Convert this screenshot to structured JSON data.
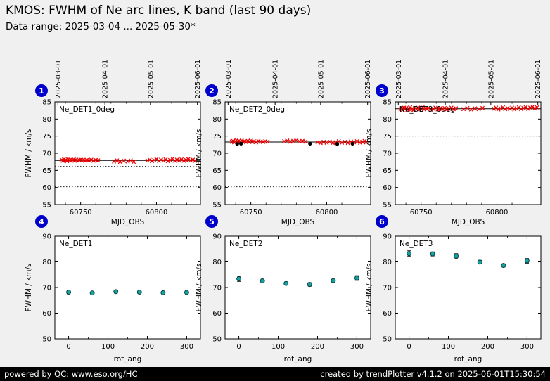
{
  "header": {
    "title": "KMOS: FWHM of Ne arc lines, K band (last 90 days)",
    "subtitle": "Data range: 2025-03-04 ... 2025-05-30*"
  },
  "footer": {
    "left": "powered by QC: www.eso.org/HC",
    "right": "created by trendPlotter v4.1.2 on 2025-06-01T15:30:54"
  },
  "colors": {
    "background": "#f0f0f0",
    "badge_blue": "#0000cc",
    "marker_red": "#ee0000",
    "marker_teal": "#17a2a2",
    "footer_bg": "#000000"
  },
  "chart_data": [
    {
      "type": "scatter",
      "badge": "1",
      "label": "Ne_DET1_0deg",
      "xlabel": "MJD_OBS",
      "ylabel": "FWHM / km/s",
      "xlim": [
        60733,
        60829
      ],
      "ylim": [
        55,
        85
      ],
      "yticks": [
        55,
        60,
        65,
        70,
        75,
        80,
        85
      ],
      "xticks": [
        60750,
        60800
      ],
      "minor_xticks": [
        60740,
        60760,
        60770,
        60780,
        60790,
        60810,
        60820
      ],
      "top_ticks": {
        "values": [
          60735,
          60766,
          60796,
          60827
        ],
        "labels": [
          "2025-03-01",
          "2025-04-01",
          "2025-05-01",
          "2025-06-01"
        ]
      },
      "solid_line": 67.9,
      "dotted_lines": [
        66.2,
        60.2
      ],
      "series": [
        {
          "name": "fwhm-red-x",
          "marker": "x",
          "color": "#ee0000",
          "points": [
            [
              60737.5,
              68.1
            ],
            [
              60738.2,
              67.8
            ],
            [
              60739,
              68.3
            ],
            [
              60739.6,
              67.9
            ],
            [
              60740.3,
              68.0
            ],
            [
              60741,
              67.7
            ],
            [
              60741.8,
              68.2
            ],
            [
              60742.5,
              67.9
            ],
            [
              60743.2,
              68.1
            ],
            [
              60744,
              67.8
            ],
            [
              60744.8,
              68.0
            ],
            [
              60745.5,
              68.2
            ],
            [
              60746.3,
              67.9
            ],
            [
              60747,
              68.1
            ],
            [
              60748,
              67.8
            ],
            [
              60749,
              68.0
            ],
            [
              60750,
              68.2
            ],
            [
              60751,
              67.9
            ],
            [
              60752,
              68.1
            ],
            [
              60753,
              67.8
            ],
            [
              60754,
              68.0
            ],
            [
              60755.5,
              67.9
            ],
            [
              60757,
              68.1
            ],
            [
              60758.5,
              67.8
            ],
            [
              60760,
              68.0
            ],
            [
              60761.5,
              67.9
            ],
            [
              60772,
              67.6
            ],
            [
              60774,
              67.9
            ],
            [
              60776,
              67.5
            ],
            [
              60778.5,
              67.8
            ],
            [
              60781,
              67.6
            ],
            [
              60783,
              67.9
            ],
            [
              60785,
              67.5
            ],
            [
              60794,
              67.9
            ],
            [
              60795.5,
              68.1
            ],
            [
              60797,
              67.7
            ],
            [
              60798.5,
              68.0
            ],
            [
              60800,
              68.3
            ],
            [
              60801.5,
              67.8
            ],
            [
              60803,
              68.1
            ],
            [
              60804.5,
              67.9
            ],
            [
              60806,
              68.2
            ],
            [
              60807.5,
              67.7
            ],
            [
              60809,
              68.0
            ],
            [
              60810.5,
              68.4
            ],
            [
              60812,
              67.8
            ],
            [
              60813.5,
              68.1
            ],
            [
              60815,
              67.9
            ],
            [
              60816.5,
              68.2
            ],
            [
              60818,
              67.8
            ],
            [
              60819.5,
              68.0
            ],
            [
              60821,
              68.3
            ],
            [
              60822.5,
              67.9
            ],
            [
              60824,
              68.1
            ],
            [
              60825.5,
              67.8
            ]
          ]
        }
      ]
    },
    {
      "type": "scatter",
      "badge": "2",
      "label": "Ne_DET2_0deg",
      "xlabel": "MJD_OBS",
      "ylabel": "FWHM / km/s",
      "xlim": [
        60733,
        60829
      ],
      "ylim": [
        55,
        85
      ],
      "yticks": [
        55,
        60,
        65,
        70,
        75,
        80,
        85
      ],
      "xticks": [
        60750,
        60800
      ],
      "minor_xticks": [
        60740,
        60760,
        60770,
        60780,
        60790,
        60810,
        60820
      ],
      "top_ticks": {
        "values": [
          60735,
          60766,
          60796,
          60827
        ],
        "labels": [
          "2025-03-01",
          "2025-04-01",
          "2025-05-01",
          "2025-06-01"
        ]
      },
      "solid_line": 73.3,
      "dotted_lines": [
        70.9,
        60.2
      ],
      "series": [
        {
          "name": "fwhm-red-x",
          "marker": "x",
          "color": "#ee0000",
          "points": [
            [
              60737.5,
              73.4
            ],
            [
              60738.3,
              73.6
            ],
            [
              60739,
              73.2
            ],
            [
              60739.8,
              73.5
            ],
            [
              60740.5,
              73.8
            ],
            [
              60741.3,
              73.3
            ],
            [
              60742,
              73.6
            ],
            [
              60743,
              73.4
            ],
            [
              60744,
              73.7
            ],
            [
              60745,
              73.3
            ],
            [
              60746,
              73.5
            ],
            [
              60747,
              73.2
            ],
            [
              60748,
              73.6
            ],
            [
              60749,
              73.4
            ],
            [
              60750,
              73.7
            ],
            [
              60751,
              73.3
            ],
            [
              60752,
              73.5
            ],
            [
              60753.5,
              73.2
            ],
            [
              60755,
              73.6
            ],
            [
              60756.5,
              73.4
            ],
            [
              60758,
              73.3
            ],
            [
              60759.5,
              73.5
            ],
            [
              60761,
              73.4
            ],
            [
              60772,
              73.5
            ],
            [
              60774,
              73.7
            ],
            [
              60776,
              73.4
            ],
            [
              60778,
              73.6
            ],
            [
              60780,
              73.8
            ],
            [
              60782,
              73.5
            ],
            [
              60784,
              73.6
            ],
            [
              60786,
              73.4
            ],
            [
              60794,
              73.2
            ],
            [
              60796,
              73.0
            ],
            [
              60798,
              73.3
            ],
            [
              60800,
              73.1
            ],
            [
              60802,
              73.4
            ],
            [
              60804,
              73.0
            ],
            [
              60806,
              73.2
            ],
            [
              60808,
              73.5
            ],
            [
              60810,
              73.1
            ],
            [
              60812,
              73.3
            ],
            [
              60814,
              73.0
            ],
            [
              60816,
              73.4
            ],
            [
              60818,
              73.2
            ],
            [
              60820,
              73.5
            ],
            [
              60822,
              73.1
            ],
            [
              60823.5,
              73.3
            ],
            [
              60825,
              73.6
            ],
            [
              60826,
              73.2
            ]
          ]
        },
        {
          "name": "reference-black-dots",
          "marker": "dot",
          "color": "#000000",
          "points": [
            [
              60741,
              72.7
            ],
            [
              60743.5,
              72.8
            ],
            [
              60789,
              72.8
            ],
            [
              60807,
              72.7
            ],
            [
              60817,
              72.8
            ]
          ]
        }
      ]
    },
    {
      "type": "scatter",
      "badge": "3",
      "label": "Ne_DET3_0deg",
      "xlabel": "MJD_OBS",
      "ylabel": "FWHM / km/s",
      "xlim": [
        60733,
        60829
      ],
      "ylim": [
        55,
        85
      ],
      "yticks": [
        55,
        60,
        65,
        70,
        75,
        80,
        85
      ],
      "xticks": [
        60750,
        60800
      ],
      "minor_xticks": [
        60740,
        60760,
        60770,
        60780,
        60790,
        60810,
        60820
      ],
      "top_ticks": {
        "values": [
          60735,
          60766,
          60796,
          60827
        ],
        "labels": [
          "2025-03-01",
          "2025-04-01",
          "2025-05-01",
          "2025-06-01"
        ]
      },
      "solid_line": 83.0,
      "dotted_lines": [
        75.0
      ],
      "series": [
        {
          "name": "fwhm-red-x",
          "marker": "x",
          "color": "#ee0000",
          "points": [
            [
              60736.5,
              82.8
            ],
            [
              60737.3,
              83.1
            ],
            [
              60738,
              82.6
            ],
            [
              60738.8,
              83.3
            ],
            [
              60739.5,
              82.9
            ],
            [
              60740.3,
              83.2
            ],
            [
              60741,
              82.7
            ],
            [
              60742,
              83.0
            ],
            [
              60742.8,
              83.4
            ],
            [
              60743.5,
              82.8
            ],
            [
              60744.3,
              83.1
            ],
            [
              60745,
              82.6
            ],
            [
              60746,
              83.2
            ],
            [
              60747,
              82.9
            ],
            [
              60748,
              83.3
            ],
            [
              60749,
              82.7
            ],
            [
              60750,
              83.0
            ],
            [
              60751,
              83.4
            ],
            [
              60752,
              82.8
            ],
            [
              60753,
              83.1
            ],
            [
              60754,
              82.9
            ],
            [
              60755,
              83.2
            ],
            [
              60756.5,
              82.7
            ],
            [
              60758,
              83.0
            ],
            [
              60759.5,
              83.3
            ],
            [
              60761,
              82.8
            ],
            [
              60762.5,
              83.1
            ],
            [
              60764,
              82.9
            ],
            [
              60765.5,
              83.2
            ],
            [
              60767,
              82.8
            ],
            [
              60768.5,
              83.0
            ],
            [
              60770,
              83.3
            ],
            [
              60771.5,
              82.9
            ],
            [
              60773,
              83.1
            ],
            [
              60778,
              82.9
            ],
            [
              60780.5,
              83.2
            ],
            [
              60783,
              82.8
            ],
            [
              60785.5,
              83.1
            ],
            [
              60788,
              82.9
            ],
            [
              60790.5,
              83.2
            ],
            [
              60798,
              83.0
            ],
            [
              60799.5,
              83.3
            ],
            [
              60801,
              82.8
            ],
            [
              60802.5,
              83.1
            ],
            [
              60804,
              83.4
            ],
            [
              60805.5,
              82.9
            ],
            [
              60807,
              83.2
            ],
            [
              60808.5,
              83.0
            ],
            [
              60810,
              83.3
            ],
            [
              60811.5,
              82.8
            ],
            [
              60813,
              83.1
            ],
            [
              60814.5,
              83.4
            ],
            [
              60816,
              82.9
            ],
            [
              60817.5,
              83.2
            ],
            [
              60819,
              83.5
            ],
            [
              60820.5,
              83.0
            ],
            [
              60822,
              83.3
            ],
            [
              60823.5,
              83.6
            ],
            [
              60825,
              83.1
            ],
            [
              60826.5,
              83.4
            ]
          ]
        }
      ]
    },
    {
      "type": "scatter-errorbar",
      "badge": "4",
      "label": "Ne_DET1",
      "xlabel": "rot_ang",
      "ylabel": "FWHM / km/s",
      "xlim": [
        -35,
        335
      ],
      "ylim": [
        50,
        90
      ],
      "yticks": [
        50,
        60,
        70,
        80,
        90
      ],
      "xticks": [
        0,
        100,
        200,
        300
      ],
      "minor_xticks": [
        50,
        150,
        250
      ],
      "series": [
        {
          "name": "mean-per-rotang",
          "marker": "errorbar",
          "color": "#17a2a2",
          "points": [
            [
              0,
              68.2,
              0.7
            ],
            [
              60,
              67.9,
              0.5
            ],
            [
              120,
              68.4,
              0.6
            ],
            [
              180,
              68.2,
              0.5
            ],
            [
              240,
              68.0,
              0.5
            ],
            [
              300,
              68.1,
              0.6
            ]
          ]
        }
      ]
    },
    {
      "type": "scatter-errorbar",
      "badge": "5",
      "label": "Ne_DET2",
      "xlabel": "rot_ang",
      "ylabel": "FWHM / km/s",
      "xlim": [
        -35,
        335
      ],
      "ylim": [
        50,
        90
      ],
      "yticks": [
        50,
        60,
        70,
        80,
        90
      ],
      "xticks": [
        0,
        100,
        200,
        300
      ],
      "minor_xticks": [
        50,
        150,
        250
      ],
      "series": [
        {
          "name": "mean-per-rotang",
          "marker": "errorbar",
          "color": "#17a2a2",
          "points": [
            [
              0,
              73.4,
              1.0
            ],
            [
              60,
              72.6,
              0.7
            ],
            [
              120,
              71.6,
              0.6
            ],
            [
              180,
              71.2,
              0.7
            ],
            [
              240,
              72.7,
              0.6
            ],
            [
              300,
              73.7,
              0.9
            ]
          ]
        }
      ]
    },
    {
      "type": "scatter-errorbar",
      "badge": "6",
      "label": "Ne_DET3",
      "xlabel": "rot_ang",
      "ylabel": "FWHM / km/s",
      "xlim": [
        -35,
        335
      ],
      "ylim": [
        50,
        90
      ],
      "yticks": [
        50,
        60,
        70,
        80,
        90
      ],
      "xticks": [
        0,
        100,
        200,
        300
      ],
      "minor_xticks": [
        50,
        150,
        250
      ],
      "series": [
        {
          "name": "mean-per-rotang",
          "marker": "errorbar",
          "color": "#17a2a2",
          "points": [
            [
              0,
              83.2,
              1.1
            ],
            [
              60,
              83.1,
              0.8
            ],
            [
              120,
              82.2,
              1.0
            ],
            [
              180,
              79.9,
              0.7
            ],
            [
              240,
              78.6,
              0.6
            ],
            [
              300,
              80.4,
              0.9
            ]
          ]
        }
      ]
    }
  ]
}
